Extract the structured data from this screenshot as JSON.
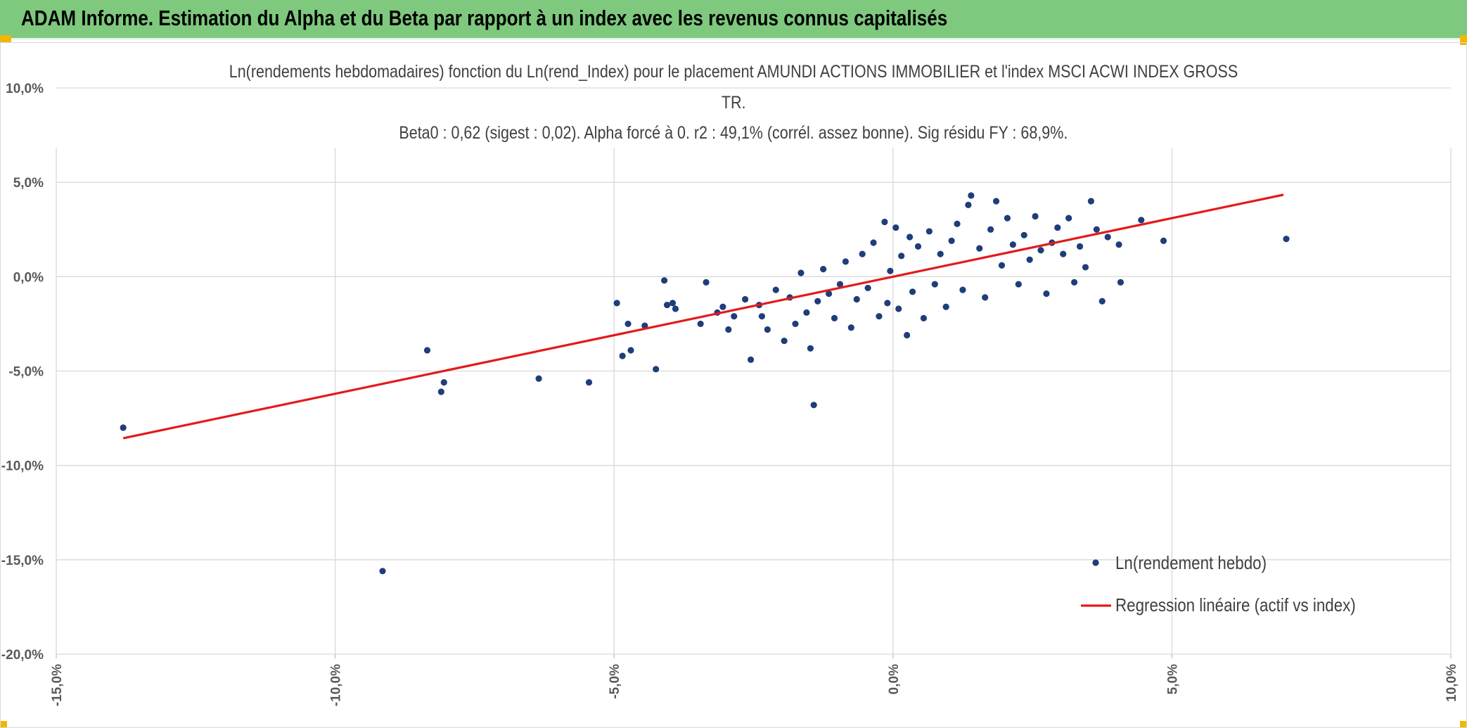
{
  "banner": {
    "title": "ADAM Informe. Estimation du Alpha et du Beta par rapport à un index avec les revenus connus capitalisés",
    "background": "#7ec97e"
  },
  "chart_data": {
    "type": "scatter",
    "title_lines": [
      "Ln(rendements hebdomadaires) fonction du Ln(rend_Index) pour le placement AMUNDI ACTIONS IMMOBILIER et l'index MSCI ACWI INDEX GROSS",
      "TR.",
      "Beta0 : 0,62 (sigest : 0,02). Alpha forcé à 0. r2 : 49,1% (corrél. assez bonne). Sig résidu FY : 68,9%."
    ],
    "xlabel": "",
    "ylabel": "",
    "xlim": [
      -0.15,
      0.1
    ],
    "ylim": [
      -0.2,
      0.1
    ],
    "x_ticks": [
      -0.15,
      -0.1,
      -0.05,
      0.0,
      0.05,
      0.1
    ],
    "y_ticks": [
      0.1,
      0.05,
      0.0,
      -0.05,
      -0.1,
      -0.15,
      -0.2
    ],
    "x_tick_labels": [
      "-15,0%",
      "-10,0%",
      "-5,0%",
      "0,0%",
      "5,0%",
      "10,0%"
    ],
    "y_tick_labels": [
      "10,0%",
      "5,0%",
      "0,0%",
      "-5,0%",
      "-10,0%",
      "-15,0%",
      "-20,0%"
    ],
    "grid": true,
    "legend_position": "bottom-right",
    "series": [
      {
        "name": "Ln(rendement hebdo)",
        "kind": "scatter",
        "color": "#1f3d7a",
        "points": [
          [
            -0.138,
            -0.08
          ],
          [
            -0.0915,
            -0.156
          ],
          [
            -0.0835,
            -0.039
          ],
          [
            -0.081,
            -0.061
          ],
          [
            -0.0805,
            -0.056
          ],
          [
            -0.0635,
            -0.054
          ],
          [
            -0.0545,
            -0.056
          ],
          [
            -0.0495,
            -0.014
          ],
          [
            -0.0485,
            -0.042
          ],
          [
            -0.0475,
            -0.025
          ],
          [
            -0.047,
            -0.039
          ],
          [
            -0.0445,
            -0.026
          ],
          [
            -0.0425,
            -0.049
          ],
          [
            -0.041,
            -0.002
          ],
          [
            -0.0405,
            -0.015
          ],
          [
            -0.0395,
            -0.014
          ],
          [
            -0.039,
            -0.017
          ],
          [
            -0.0345,
            -0.025
          ],
          [
            -0.0335,
            -0.003
          ],
          [
            -0.0315,
            -0.019
          ],
          [
            -0.0305,
            -0.016
          ],
          [
            -0.0295,
            -0.028
          ],
          [
            -0.0285,
            -0.021
          ],
          [
            -0.0265,
            -0.012
          ],
          [
            -0.0255,
            -0.044
          ],
          [
            -0.024,
            -0.015
          ],
          [
            -0.0235,
            -0.021
          ],
          [
            -0.0225,
            -0.028
          ],
          [
            -0.021,
            -0.007
          ],
          [
            -0.0195,
            -0.034
          ],
          [
            -0.0185,
            -0.011
          ],
          [
            -0.0175,
            -0.025
          ],
          [
            -0.0165,
            0.002
          ],
          [
            -0.0155,
            -0.019
          ],
          [
            -0.0148,
            -0.038
          ],
          [
            -0.0142,
            -0.068
          ],
          [
            -0.0135,
            -0.013
          ],
          [
            -0.0125,
            0.004
          ],
          [
            -0.0115,
            -0.009
          ],
          [
            -0.0105,
            -0.022
          ],
          [
            -0.0095,
            -0.004
          ],
          [
            -0.0085,
            0.008
          ],
          [
            -0.0075,
            -0.027
          ],
          [
            -0.0065,
            -0.012
          ],
          [
            -0.0055,
            0.012
          ],
          [
            -0.0045,
            -0.006
          ],
          [
            -0.0035,
            0.018
          ],
          [
            -0.0025,
            -0.021
          ],
          [
            -0.0015,
            0.029
          ],
          [
            -0.001,
            -0.014
          ],
          [
            -0.0005,
            0.003
          ],
          [
            0.0005,
            0.026
          ],
          [
            0.001,
            -0.017
          ],
          [
            0.0015,
            0.011
          ],
          [
            0.0025,
            -0.031
          ],
          [
            0.003,
            0.021
          ],
          [
            0.0035,
            -0.008
          ],
          [
            0.0045,
            0.016
          ],
          [
            0.0055,
            -0.022
          ],
          [
            0.0065,
            0.024
          ],
          [
            0.0075,
            -0.004
          ],
          [
            0.0085,
            0.012
          ],
          [
            0.0095,
            -0.016
          ],
          [
            0.0105,
            0.019
          ],
          [
            0.0115,
            0.028
          ],
          [
            0.0125,
            -0.007
          ],
          [
            0.0135,
            0.038
          ],
          [
            0.014,
            0.043
          ],
          [
            0.0155,
            0.015
          ],
          [
            0.0165,
            -0.011
          ],
          [
            0.0175,
            0.025
          ],
          [
            0.0185,
            0.04
          ],
          [
            0.0195,
            0.006
          ],
          [
            0.0205,
            0.031
          ],
          [
            0.0215,
            0.017
          ],
          [
            0.0225,
            -0.004
          ],
          [
            0.0235,
            0.022
          ],
          [
            0.0245,
            0.009
          ],
          [
            0.0255,
            0.032
          ],
          [
            0.0265,
            0.014
          ],
          [
            0.0275,
            -0.009
          ],
          [
            0.0285,
            0.018
          ],
          [
            0.0295,
            0.026
          ],
          [
            0.0305,
            0.012
          ],
          [
            0.0315,
            0.031
          ],
          [
            0.0325,
            -0.003
          ],
          [
            0.0335,
            0.016
          ],
          [
            0.0345,
            0.005
          ],
          [
            0.0355,
            0.04
          ],
          [
            0.0365,
            0.025
          ],
          [
            0.0375,
            -0.013
          ],
          [
            0.0385,
            0.021
          ],
          [
            0.0405,
            0.017
          ],
          [
            0.0408,
            -0.003
          ],
          [
            0.0445,
            0.03
          ],
          [
            0.0485,
            0.019
          ],
          [
            0.0705,
            0.02
          ]
        ]
      },
      {
        "name": "Regression linéaire (actif vs index)",
        "kind": "line",
        "color": "#e31a1c",
        "points": [
          [
            -0.138,
            -0.0856
          ],
          [
            0.07,
            0.0434
          ]
        ]
      }
    ]
  }
}
